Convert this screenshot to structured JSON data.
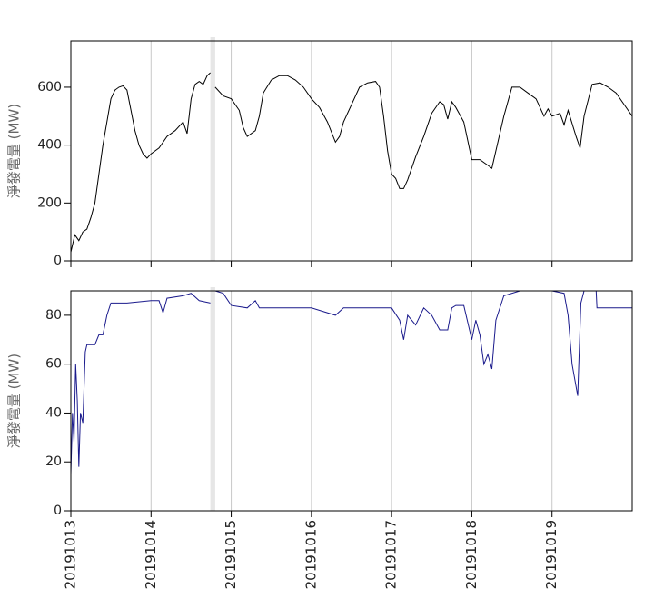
{
  "chart_data": [
    {
      "type": "line",
      "y_label": "淨發電量 (MW)",
      "color": "#000000",
      "xlim": [
        0,
        7
      ],
      "ylim": [
        0,
        760
      ],
      "yticks": [
        0,
        200,
        400,
        600
      ],
      "xticks": [
        0,
        1,
        2,
        3,
        4,
        5,
        6
      ],
      "grid": true,
      "x": [
        0,
        0.05,
        0.1,
        0.15,
        0.2,
        0.25,
        0.3,
        0.35,
        0.4,
        0.45,
        0.5,
        0.55,
        0.6,
        0.65,
        0.7,
        0.75,
        0.8,
        0.85,
        0.9,
        0.95,
        1.0,
        1.1,
        1.2,
        1.3,
        1.4,
        1.45,
        1.5,
        1.55,
        1.6,
        1.65,
        1.7,
        1.74,
        1.765,
        1.8,
        1.9,
        2.0,
        2.1,
        2.15,
        2.2,
        2.3,
        2.35,
        2.4,
        2.5,
        2.6,
        2.7,
        2.8,
        2.9,
        3.0,
        3.1,
        3.2,
        3.3,
        3.35,
        3.4,
        3.5,
        3.6,
        3.7,
        3.8,
        3.85,
        3.9,
        3.95,
        4.0,
        4.05,
        4.1,
        4.15,
        4.2,
        4.3,
        4.4,
        4.5,
        4.6,
        4.65,
        4.7,
        4.75,
        4.8,
        4.9,
        5.0,
        5.1,
        5.2,
        5.25,
        5.3,
        5.4,
        5.5,
        5.6,
        5.7,
        5.8,
        5.9,
        5.95,
        6.0,
        6.1,
        6.15,
        6.2,
        6.3,
        6.35,
        6.4,
        6.5,
        6.6,
        6.7,
        6.8,
        6.9,
        7.0
      ],
      "values": [
        30,
        90,
        70,
        100,
        110,
        150,
        200,
        300,
        400,
        480,
        560,
        590,
        600,
        605,
        590,
        520,
        450,
        400,
        370,
        355,
        370,
        390,
        430,
        450,
        480,
        440,
        560,
        610,
        620,
        610,
        640,
        650,
        null,
        600,
        570,
        560,
        520,
        460,
        430,
        450,
        500,
        580,
        625,
        640,
        640,
        625,
        600,
        560,
        530,
        480,
        410,
        430,
        480,
        540,
        600,
        615,
        620,
        600,
        500,
        380,
        300,
        285,
        250,
        250,
        280,
        360,
        430,
        510,
        550,
        540,
        490,
        550,
        530,
        480,
        350,
        350,
        330,
        320,
        380,
        500,
        600,
        600,
        580,
        560,
        500,
        525,
        500,
        510,
        470,
        520,
        430,
        390,
        500,
        610,
        615,
        600,
        580,
        540,
        500
      ]
    },
    {
      "type": "line",
      "y_label": "淨發電量 (MW)",
      "color": "#1a1a8c",
      "xlim": [
        0,
        7
      ],
      "ylim": [
        0,
        90
      ],
      "yticks": [
        0,
        20,
        40,
        60,
        80
      ],
      "grid": true,
      "xticks": [
        {
          "value": 0,
          "label": "20191013"
        },
        {
          "value": 1,
          "label": "20191014"
        },
        {
          "value": 2,
          "label": "20191015"
        },
        {
          "value": 3,
          "label": "20191016"
        },
        {
          "value": 4,
          "label": "20191017"
        },
        {
          "value": 5,
          "label": "20191018"
        },
        {
          "value": 6,
          "label": "20191019"
        }
      ],
      "x": [
        0,
        0.02,
        0.04,
        0.06,
        0.08,
        0.1,
        0.12,
        0.15,
        0.18,
        0.2,
        0.3,
        0.35,
        0.4,
        0.45,
        0.5,
        0.7,
        1.0,
        1.1,
        1.15,
        1.2,
        1.4,
        1.5,
        1.6,
        1.74,
        1.765,
        1.8,
        1.9,
        2.0,
        2.2,
        2.3,
        2.35,
        3.0,
        3.3,
        3.4,
        4.0,
        4.1,
        4.15,
        4.2,
        4.3,
        4.4,
        4.5,
        4.6,
        4.7,
        4.75,
        4.8,
        4.9,
        5.0,
        5.05,
        5.1,
        5.15,
        5.2,
        5.25,
        5.3,
        5.4,
        5.6,
        6.0,
        6.15,
        6.2,
        6.25,
        6.32,
        6.36,
        6.4,
        6.55,
        6.56,
        7.0
      ],
      "values": [
        15,
        40,
        28,
        60,
        45,
        18,
        40,
        36,
        65,
        68,
        68,
        72,
        72,
        80,
        85,
        85,
        86,
        86,
        81,
        87,
        88,
        89,
        86,
        85,
        null,
        90,
        89,
        84,
        83,
        86,
        83,
        83,
        80,
        83,
        83,
        78,
        70,
        80,
        76,
        83,
        80,
        74,
        74,
        83,
        84,
        84,
        70,
        78,
        72,
        60,
        64,
        58,
        78,
        88,
        90,
        90,
        89,
        80,
        60,
        47,
        85,
        90,
        90,
        83,
        83
      ]
    }
  ]
}
